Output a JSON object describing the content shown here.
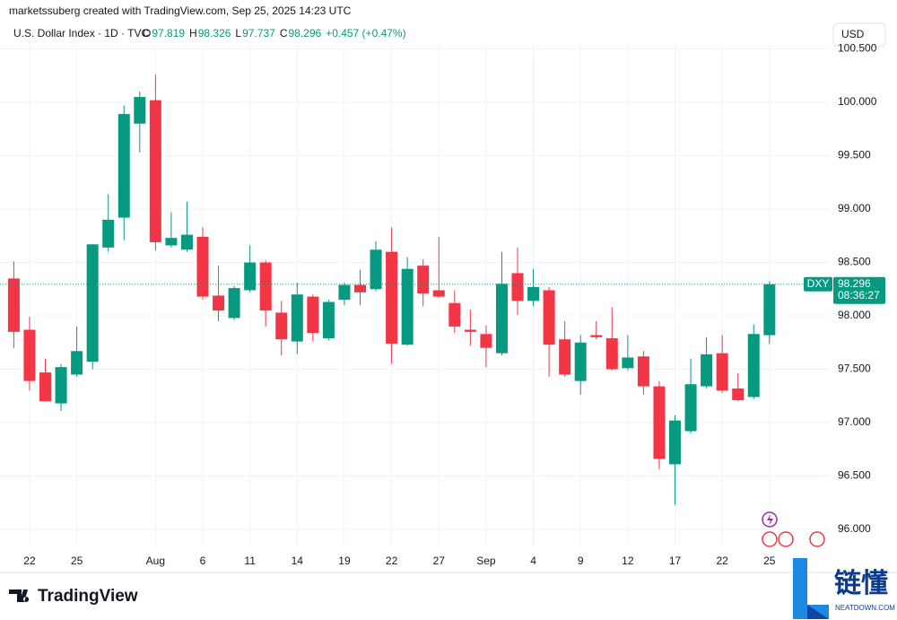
{
  "header": {
    "attribution": "marketssuberg created with TradingView.com, Sep 25, 2025 14:23 UTC"
  },
  "legend": {
    "symbol": "U.S. Dollar Index · 1D · TVC",
    "ohlc": [
      {
        "key": "O",
        "value": 97.819
      },
      {
        "key": "H",
        "value": 98.326
      },
      {
        "key": "L",
        "value": 97.737
      },
      {
        "key": "C",
        "value": 98.296
      }
    ],
    "change": "+0.457 (+0.47%)"
  },
  "currency_button": "USD",
  "price_tag": {
    "symbol": "DXY",
    "countdown": "08:36:27"
  },
  "footer": {
    "brand": "TradingView"
  },
  "watermark": {
    "name": "链懂",
    "site": "NEATDOWN.COM"
  },
  "chart_data": {
    "type": "candlestick",
    "categories": [
      null,
      "22",
      null,
      null,
      "25",
      null,
      null,
      null,
      null,
      "Aug",
      null,
      null,
      "6",
      null,
      null,
      "11",
      null,
      null,
      "14",
      null,
      null,
      "19",
      null,
      null,
      "22",
      null,
      null,
      "27",
      null,
      null,
      "Sep",
      null,
      null,
      "4",
      null,
      null,
      "9",
      null,
      null,
      "12",
      null,
      null,
      "17",
      null,
      null,
      "22",
      null,
      null,
      "25"
    ],
    "open": [
      98.35,
      97.87,
      97.47,
      97.18,
      97.45,
      97.57,
      98.64,
      98.92,
      99.8,
      100.02,
      98.66,
      98.62,
      98.74,
      98.19,
      97.98,
      98.24,
      98.5,
      98.03,
      97.76,
      98.18,
      97.79,
      98.15,
      98.29,
      98.25,
      98.6,
      97.73,
      98.47,
      98.24,
      98.12,
      97.87,
      97.83,
      97.65,
      98.4,
      98.14,
      98.24,
      97.78,
      97.39,
      97.82,
      97.79,
      97.51,
      97.62,
      97.34,
      96.61,
      96.92,
      97.34,
      97.65,
      97.32,
      97.24,
      97.819
    ],
    "high": [
      98.51,
      97.99,
      97.6,
      97.55,
      97.9,
      98.67,
      99.14,
      99.97,
      100.1,
      100.26,
      98.97,
      99.07,
      98.83,
      98.47,
      98.28,
      98.66,
      98.52,
      98.14,
      98.31,
      98.2,
      98.15,
      98.31,
      98.43,
      98.7,
      98.83,
      98.55,
      98.53,
      98.74,
      98.24,
      98.06,
      97.91,
      98.6,
      98.64,
      98.44,
      98.27,
      97.95,
      97.82,
      97.95,
      98.08,
      97.82,
      97.67,
      97.39,
      97.07,
      97.6,
      97.8,
      97.82,
      97.46,
      97.92,
      98.326
    ],
    "low": [
      97.7,
      97.3,
      97.2,
      97.11,
      97.43,
      97.5,
      98.6,
      98.71,
      99.53,
      98.61,
      98.64,
      98.6,
      98.15,
      97.95,
      97.96,
      98.22,
      97.9,
      97.63,
      97.64,
      97.76,
      97.77,
      98.1,
      98.1,
      98.23,
      97.55,
      97.72,
      98.09,
      98.17,
      97.84,
      97.72,
      97.52,
      97.63,
      98.01,
      98.09,
      97.43,
      97.43,
      97.26,
      97.78,
      97.49,
      97.49,
      97.26,
      96.56,
      96.23,
      96.9,
      97.32,
      97.28,
      97.2,
      97.22,
      97.737
    ],
    "close": [
      97.85,
      97.39,
      97.2,
      97.52,
      97.67,
      98.67,
      98.9,
      99.89,
      100.05,
      98.69,
      98.73,
      98.76,
      98.18,
      98.05,
      98.26,
      98.5,
      98.05,
      97.78,
      98.2,
      97.84,
      98.13,
      98.29,
      98.22,
      98.62,
      97.74,
      98.44,
      98.21,
      98.18,
      97.9,
      97.85,
      97.7,
      98.3,
      98.14,
      98.27,
      97.73,
      97.45,
      97.75,
      97.8,
      97.5,
      97.61,
      97.34,
      96.66,
      97.02,
      97.36,
      97.64,
      97.3,
      97.21,
      97.83,
      98.296
    ],
    "up_color": "#089981",
    "down_color": "#f23645",
    "ylim": [
      95.849,
      100.538
    ],
    "yticks": [
      {
        "value": 96,
        "label": "96.000"
      },
      {
        "value": 96.5,
        "label": "96.500"
      },
      {
        "value": 97,
        "label": "97.000"
      },
      {
        "value": 97.5,
        "label": "97.500"
      },
      {
        "value": 98,
        "label": "98.000"
      },
      {
        "value": 98.5,
        "label": "98.500"
      },
      {
        "value": 99,
        "label": "99.000"
      },
      {
        "value": 99.5,
        "label": "99.500"
      },
      {
        "value": 100,
        "label": "100.000"
      },
      {
        "value": 100.5,
        "label": "100.500"
      }
    ],
    "grid": true
  }
}
